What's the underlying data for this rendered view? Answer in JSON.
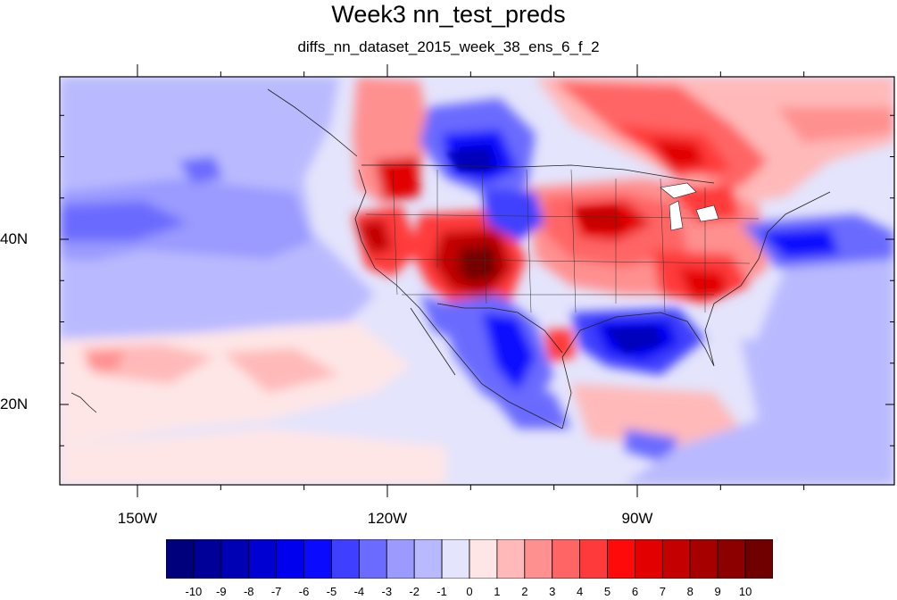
{
  "title": "Week3 nn_test_preds",
  "subtitle": "diffs_nn_dataset_2015_week_38_ens_6_f_2",
  "axes": {
    "lat_ticks": [
      {
        "label": "40N",
        "value": 40
      },
      {
        "label": "20N",
        "value": 20
      }
    ],
    "lon_ticks": [
      {
        "label": "150W",
        "value": -150
      },
      {
        "label": "120W",
        "value": -120
      },
      {
        "label": "90W",
        "value": -90
      }
    ]
  },
  "colorbar": {
    "labels": [
      "-10",
      "-9",
      "-8",
      "-7",
      "-6",
      "-5",
      "-4",
      "-3",
      "-2",
      "-1",
      "0",
      "1",
      "2",
      "3",
      "4",
      "5",
      "6",
      "7",
      "8",
      "9",
      "10"
    ],
    "colors": [
      "#00007c",
      "#000098",
      "#0000b4",
      "#0000d2",
      "#0000ee",
      "#0a0aff",
      "#3f3fff",
      "#6b6bff",
      "#9a9aff",
      "#b9b9ff",
      "#e4e4fc",
      "#fee6e6",
      "#ffb9b9",
      "#ff9090",
      "#ff6565",
      "#ff3a3a",
      "#ff0a0a",
      "#e20000",
      "#c40000",
      "#a70000",
      "#8c0000",
      "#700000"
    ]
  }
}
